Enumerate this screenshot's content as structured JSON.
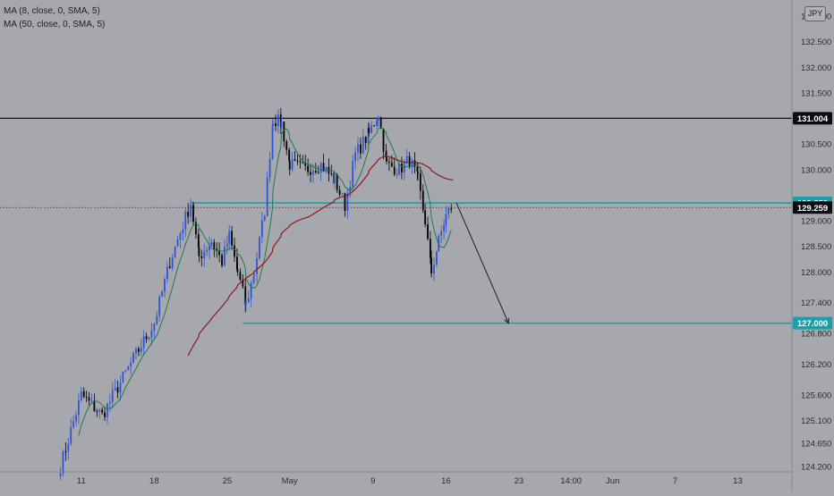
{
  "legend": [
    "MA (8, close, 0, SMA, 5)",
    "MA (50, close, 0, SMA, 5)"
  ],
  "currency_badge": "JPY",
  "colors": {
    "background": "#a6a8ad",
    "candle_up": "#2f55d4",
    "candle_down": "#000000",
    "ma_fast": "#1f7a4d",
    "ma_slow": "#8b1a1a",
    "level": "#18a0ab",
    "resistance": "#000000"
  },
  "chart_data": {
    "type": "candlestick",
    "ylim": [
      124.2,
      133.0
    ],
    "y_ticks": [
      "133.000",
      "132.500",
      "132.000",
      "131.500",
      "130.500",
      "130.000",
      "129.000",
      "128.500",
      "128.000",
      "127.400",
      "126.800",
      "126.200",
      "125.600",
      "125.100",
      "124.650",
      "124.200"
    ],
    "x_ticks": [
      {
        "label": "11",
        "day": 11
      },
      {
        "label": "18",
        "day": 18
      },
      {
        "label": "25",
        "day": 25
      },
      {
        "label": "May",
        "day": 31
      },
      {
        "label": "9",
        "day": 39
      },
      {
        "label": "16",
        "day": 46
      },
      {
        "label": "23",
        "day": 53
      },
      {
        "label": "14:00",
        "day": 58
      },
      {
        "label": "Jun",
        "day": 62
      },
      {
        "label": "7",
        "day": 68
      },
      {
        "label": "13",
        "day": 74
      }
    ],
    "x_range_days": [
      3.2,
      79.2
    ],
    "price_labels": [
      {
        "value": 131.004,
        "text": "131.004",
        "style": "dark"
      },
      {
        "value": 129.35,
        "text": "129.350",
        "style": "cyan"
      },
      {
        "value": 129.259,
        "text": "129.259",
        "style": "dark"
      },
      {
        "value": 127.0,
        "text": "127.000",
        "style": "cyan"
      }
    ],
    "lines": {
      "resistance": {
        "value": 131.004,
        "from_day": 3.2
      },
      "support_upper": {
        "value": 129.35,
        "from_day": 21.5
      },
      "current_price_dotted": {
        "value": 129.259
      },
      "target": {
        "value": 127.0,
        "from_day": 26.5
      }
    },
    "projection": {
      "from": {
        "day": 47.0,
        "price": 129.35
      },
      "to": {
        "day": 52.0,
        "price": 127.0
      }
    },
    "waypoints": [
      {
        "day": 9.0,
        "price": 124.2
      },
      {
        "day": 11.0,
        "price": 125.6
      },
      {
        "day": 13.0,
        "price": 125.2
      },
      {
        "day": 16.0,
        "price": 126.3
      },
      {
        "day": 18.0,
        "price": 127.0
      },
      {
        "day": 19.5,
        "price": 128.2
      },
      {
        "day": 21.5,
        "price": 129.35
      },
      {
        "day": 22.3,
        "price": 128.3
      },
      {
        "day": 23.5,
        "price": 128.6
      },
      {
        "day": 24.5,
        "price": 128.2
      },
      {
        "day": 25.2,
        "price": 128.7
      },
      {
        "day": 26.0,
        "price": 128.0
      },
      {
        "day": 26.8,
        "price": 127.35
      },
      {
        "day": 27.6,
        "price": 128.0
      },
      {
        "day": 28.6,
        "price": 129.2
      },
      {
        "day": 29.4,
        "price": 131.0
      },
      {
        "day": 30.2,
        "price": 130.9
      },
      {
        "day": 31.0,
        "price": 130.1
      },
      {
        "day": 32.5,
        "price": 130.0
      },
      {
        "day": 34.0,
        "price": 130.1
      },
      {
        "day": 35.3,
        "price": 129.8
      },
      {
        "day": 36.3,
        "price": 129.3
      },
      {
        "day": 37.3,
        "price": 130.3
      },
      {
        "day": 38.6,
        "price": 130.7
      },
      {
        "day": 39.5,
        "price": 131.1
      },
      {
        "day": 40.3,
        "price": 130.1
      },
      {
        "day": 41.5,
        "price": 130.0
      },
      {
        "day": 42.5,
        "price": 130.2
      },
      {
        "day": 43.3,
        "price": 129.8
      },
      {
        "day": 44.0,
        "price": 129.0
      },
      {
        "day": 44.6,
        "price": 128.0
      },
      {
        "day": 45.3,
        "price": 128.6
      },
      {
        "day": 46.0,
        "price": 129.1
      },
      {
        "day": 46.6,
        "price": 129.3
      }
    ]
  }
}
